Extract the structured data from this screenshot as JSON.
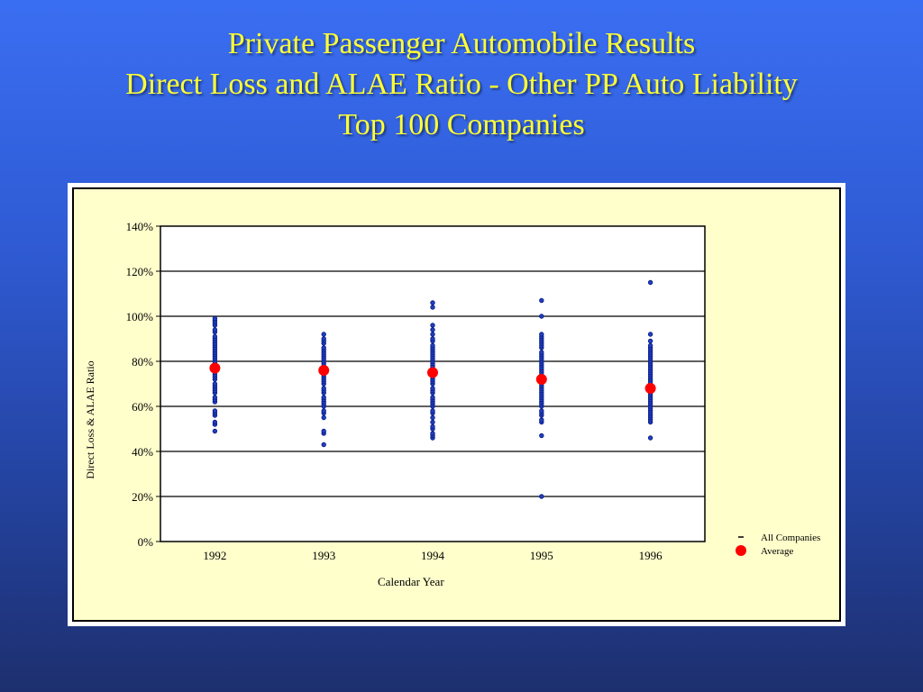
{
  "slide": {
    "title_line1": "Private Passenger Automobile Results",
    "title_line2": "Direct Loss and ALAE Ratio - Other PP Auto Liability",
    "title_line3": "Top 100 Companies"
  },
  "colors": {
    "title": "#ffff33",
    "panel": "#ffffcc",
    "company_point": "#1f3fbf",
    "average_point": "#ff0000"
  },
  "chart_data": {
    "type": "scatter",
    "title": "Private Passenger Automobile Results Direct Loss and ALAE Ratio - Other PP Auto Liability Top 100 Companies",
    "xlabel": "Calendar Year",
    "ylabel": "Direct Loss & ALAE Ratio",
    "categories": [
      "1992",
      "1993",
      "1994",
      "1995",
      "1996"
    ],
    "yticks": [
      "0%",
      "20%",
      "40%",
      "60%",
      "80%",
      "100%",
      "120%",
      "140%"
    ],
    "ylim": [
      0,
      140
    ],
    "grid": true,
    "legend_position": "bottom-right",
    "series": [
      {
        "name": "All Companies",
        "marker": "small-circle",
        "points": [
          {
            "x": "1992",
            "y": [
              49,
              52,
              53,
              56,
              57,
              58,
              62,
              63,
              64,
              66,
              67,
              68,
              69,
              70,
              72,
              73,
              74,
              75,
              76,
              77,
              78,
              79,
              80,
              81,
              82,
              83,
              84,
              85,
              86,
              87,
              88,
              89,
              90,
              91,
              93,
              94,
              96,
              97,
              98,
              99
            ]
          },
          {
            "x": "1993",
            "y": [
              43,
              48,
              49,
              55,
              57,
              58,
              60,
              61,
              62,
              63,
              64,
              66,
              67,
              68,
              70,
              71,
              72,
              73,
              74,
              75,
              76,
              77,
              78,
              79,
              80,
              81,
              82,
              83,
              84,
              85,
              86,
              88,
              89,
              90,
              92
            ]
          },
          {
            "x": "1994",
            "y": [
              46,
              47,
              48,
              50,
              51,
              53,
              55,
              57,
              58,
              60,
              61,
              62,
              63,
              64,
              66,
              67,
              68,
              70,
              71,
              72,
              73,
              74,
              75,
              76,
              77,
              78,
              79,
              80,
              81,
              82,
              83,
              84,
              85,
              86,
              87,
              89,
              90,
              92,
              94,
              96,
              104,
              106
            ]
          },
          {
            "x": "1995",
            "y": [
              20,
              47,
              53,
              54,
              56,
              57,
              58,
              60,
              61,
              62,
              63,
              64,
              65,
              66,
              67,
              68,
              69,
              70,
              71,
              72,
              73,
              74,
              75,
              76,
              77,
              78,
              79,
              80,
              81,
              82,
              83,
              84,
              86,
              87,
              88,
              89,
              90,
              91,
              92,
              100,
              107
            ]
          },
          {
            "x": "1996",
            "y": [
              46,
              53,
              54,
              55,
              56,
              57,
              58,
              59,
              60,
              61,
              62,
              63,
              64,
              65,
              66,
              67,
              68,
              69,
              70,
              71,
              72,
              73,
              74,
              75,
              76,
              77,
              78,
              79,
              80,
              81,
              82,
              83,
              84,
              85,
              86,
              87,
              89,
              92,
              115
            ]
          }
        ]
      },
      {
        "name": "Average",
        "marker": "large-circle",
        "x": [
          "1992",
          "1993",
          "1994",
          "1995",
          "1996"
        ],
        "values": [
          77,
          76,
          75,
          72,
          68
        ]
      }
    ],
    "legend": [
      "All Companies",
      "Average"
    ]
  }
}
